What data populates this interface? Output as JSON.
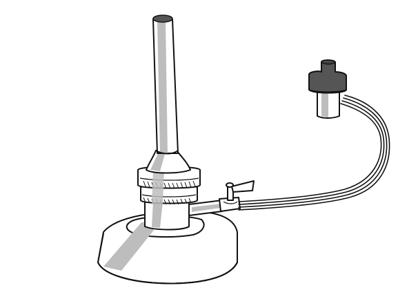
{
  "illustration": {
    "subject": "bunsen-burner",
    "colors": {
      "background": "#ffffff",
      "outline": "#111111",
      "shade": "#bdbdbd",
      "cap": "#555555",
      "cap_top": "#3a3a3a"
    },
    "parts": [
      "barrel-tube",
      "collar-ring",
      "base-plate",
      "gas-valve",
      "gas-hose",
      "gas-nozzle"
    ]
  }
}
